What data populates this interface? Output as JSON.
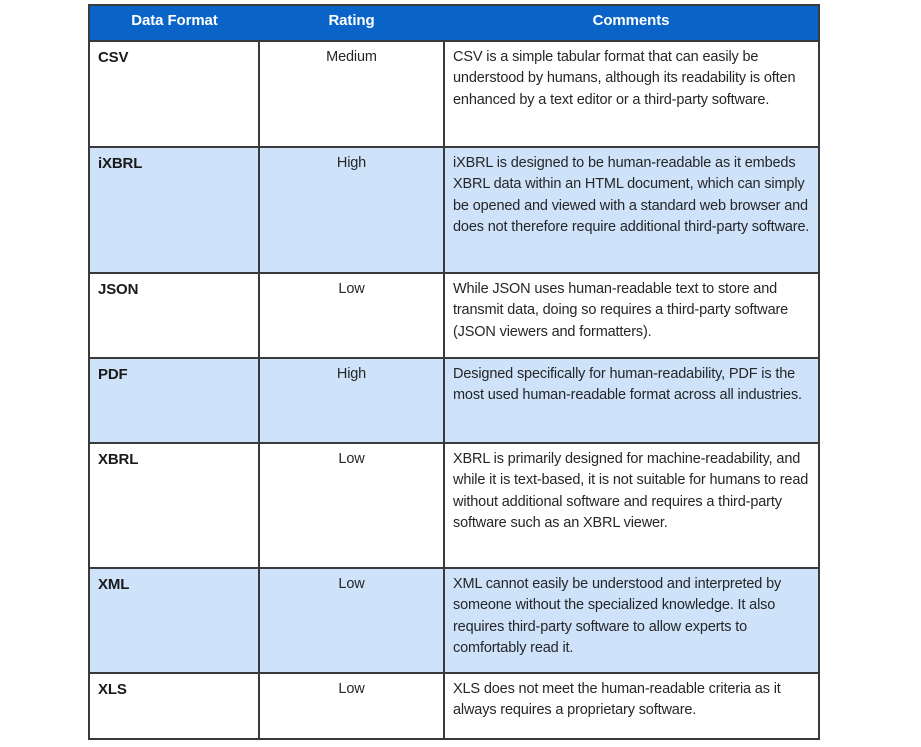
{
  "colors": {
    "header_bg": "#0A64C8",
    "header_text": "#FFFFFF",
    "row_shade": "#CEE2FA",
    "row_plain": "#FFFFFF",
    "border": "#3A3A3A",
    "text": "#262626"
  },
  "table": {
    "headers": [
      "Data Format",
      "Rating",
      "Comments"
    ],
    "rows": [
      {
        "format": "CSV",
        "rating": "Medium",
        "comment": "CSV is a simple tabular format that can easily be understood by humans, although its readability is often enhanced by a text editor or a third-party software."
      },
      {
        "format": "iXBRL",
        "rating": "High",
        "comment": "iXBRL is designed to be human-readable as it embeds XBRL data within an HTML document, which can simply be opened and viewed with a standard web browser and does not therefore require additional third-party software."
      },
      {
        "format": "JSON",
        "rating": "Low",
        "comment": "While JSON uses human-readable text to store and transmit data, doing so requires a third-party software (JSON viewers and formatters)."
      },
      {
        "format": "PDF",
        "rating": "High",
        "comment": "Designed specifically for human-readability, PDF is the most used human-readable format across all industries."
      },
      {
        "format": "XBRL",
        "rating": "Low",
        "comment": "XBRL is primarily designed for machine-readability, and while it is text-based, it is not suitable for humans to read without additional software and requires a third-party software such as an XBRL viewer."
      },
      {
        "format": "XML",
        "rating": "Low",
        "comment": "XML cannot easily be understood and interpreted by someone without the specialized knowledge. It also requires third-party software to allow experts to comfortably read it."
      },
      {
        "format": "XLS",
        "rating": "Low",
        "comment": "XLS does not meet the human-readable criteria as it always requires a proprietary software."
      }
    ]
  }
}
